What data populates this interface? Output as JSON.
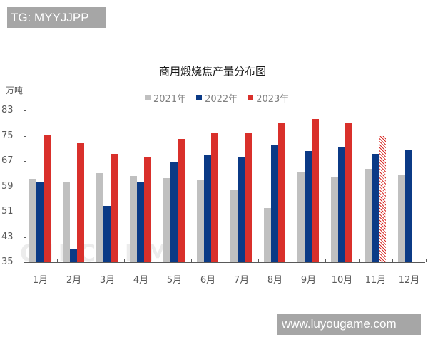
{
  "watermark_top": "TG: MYYJJPP",
  "watermark_bottom": "www.luyougame.com",
  "faint_watermark": "OILCHEM",
  "colors": {
    "s2021": "#c0c0c0",
    "s2022": "#0b3a86",
    "s2023": "#d9302b"
  },
  "chart_data": {
    "type": "bar",
    "title": "商用煅烧焦产量分布图",
    "ylabel": "万吨",
    "xlabel": "",
    "ylim": [
      35,
      83
    ],
    "yticks": [
      83,
      75,
      67,
      59,
      51,
      43,
      35
    ],
    "grid": false,
    "legend_position": "top",
    "categories": [
      "1月",
      "2月",
      "3月",
      "4月",
      "5月",
      "6月",
      "7月",
      "8月",
      "9月",
      "10月",
      "11月",
      "12月"
    ],
    "series": [
      {
        "name": "2021年",
        "color": "#c0c0c0",
        "values": [
          61.4,
          60.2,
          63.1,
          62.2,
          61.5,
          61.2,
          57.8,
          52.1,
          63.6,
          61.9,
          64.6,
          62.5
        ]
      },
      {
        "name": "2022年",
        "color": "#0b3a86",
        "values": [
          60.2,
          39.2,
          52.9,
          60.2,
          66.6,
          68.7,
          68.4,
          71.9,
          70.2,
          71.3,
          69.3,
          70.6
        ]
      },
      {
        "name": "2023年",
        "color": "#d9302b",
        "values": [
          75.1,
          72.6,
          69.3,
          68.4,
          73.9,
          75.7,
          76.0,
          79.1,
          80.4,
          79.1,
          74.9,
          null
        ]
      }
    ],
    "annotations": [
      "11月 2023年 bar shown hatched (forecast)"
    ]
  }
}
